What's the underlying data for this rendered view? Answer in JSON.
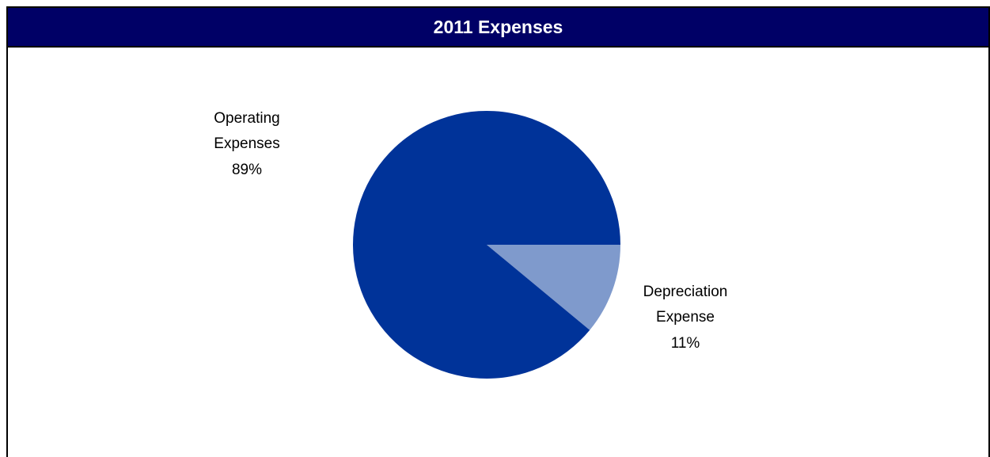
{
  "chart_data": {
    "type": "pie",
    "title": "2011 Expenses",
    "slices": [
      {
        "label_lines": [
          "Operating",
          "Expenses"
        ],
        "pct_label": "89%",
        "value": 89,
        "color": "#003399"
      },
      {
        "label_lines": [
          "Depreciation",
          "Expense"
        ],
        "pct_label": "11%",
        "value": 11,
        "color": "#7f9acc"
      }
    ],
    "legend": "none"
  },
  "colors": {
    "title_bar": "#000066",
    "title_text": "#ffffff"
  }
}
